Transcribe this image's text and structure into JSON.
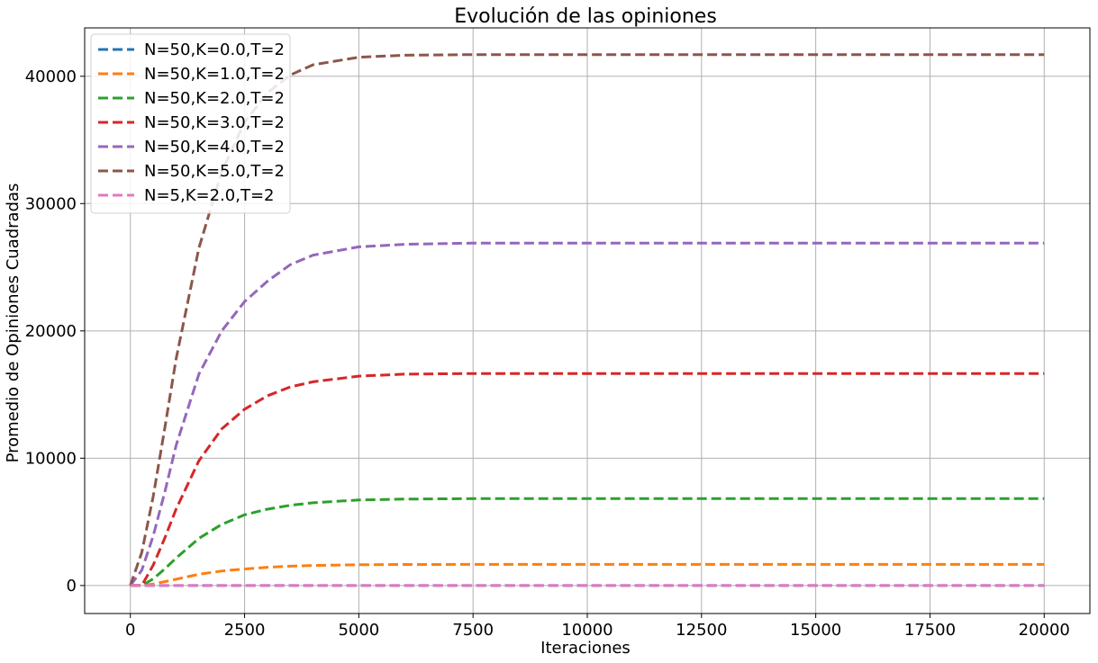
{
  "chart_data": {
    "type": "line",
    "title": "Evolución de las opiniones",
    "xlabel": "Iteraciones",
    "ylabel": "Promedio de Opiniones Cuadradas",
    "xlim": [
      -1000,
      21000
    ],
    "ylim": [
      -2200,
      43800
    ],
    "xticks": [
      0,
      2500,
      5000,
      7500,
      10000,
      12500,
      15000,
      17500,
      20000
    ],
    "xtick_labels": [
      "0",
      "2500",
      "5000",
      "7500",
      "10000",
      "12500",
      "15000",
      "17500",
      "20000"
    ],
    "yticks": [
      0,
      10000,
      20000,
      30000,
      40000
    ],
    "ytick_labels": [
      "0",
      "10000",
      "20000",
      "30000",
      "40000"
    ],
    "grid": true,
    "legend_position": "top-left",
    "line_style": "dashed",
    "x": [
      0,
      250,
      500,
      750,
      1000,
      1500,
      2000,
      2500,
      3000,
      3500,
      4000,
      5000,
      6000,
      7500,
      10000,
      12500,
      15000,
      17500,
      20000
    ],
    "series": [
      {
        "name": "N=50,K=0.0,T=2",
        "color": "#1f77b4",
        "values": [
          0,
          0,
          0,
          0,
          0,
          0,
          0,
          0,
          0,
          0,
          0,
          0,
          0,
          0,
          0,
          0,
          0,
          0,
          0
        ]
      },
      {
        "name": "N=50,K=1.0,T=2",
        "color": "#ff7f0e",
        "values": [
          0,
          0,
          120,
          300,
          490,
          880,
          1140,
          1300,
          1430,
          1520,
          1570,
          1630,
          1650,
          1660,
          1660,
          1660,
          1660,
          1660,
          1660
        ]
      },
      {
        "name": "N=50,K=2.0,T=2",
        "color": "#2ca02c",
        "values": [
          0,
          0,
          520,
          1300,
          2150,
          3700,
          4800,
          5550,
          6000,
          6300,
          6500,
          6720,
          6790,
          6820,
          6820,
          6820,
          6820,
          6820,
          6820
        ]
      },
      {
        "name": "N=50,K=3.0,T=2",
        "color": "#d62728",
        "values": [
          0,
          0,
          1600,
          3700,
          6000,
          9800,
          12300,
          13850,
          14900,
          15600,
          16000,
          16450,
          16600,
          16650,
          16650,
          16650,
          16650,
          16650,
          16650
        ]
      },
      {
        "name": "N=50,K=4.0,T=2",
        "color": "#9467bd",
        "values": [
          0,
          1200,
          3900,
          7300,
          11000,
          16600,
          20000,
          22300,
          23900,
          25200,
          25950,
          26600,
          26800,
          26900,
          26900,
          26900,
          26900,
          26900,
          26900
        ]
      },
      {
        "name": "N=50,K=5.0,T=2",
        "color": "#8c564b",
        "values": [
          0,
          2600,
          7000,
          12300,
          17800,
          26500,
          32500,
          36400,
          38700,
          40100,
          40900,
          41500,
          41650,
          41700,
          41700,
          41700,
          41700,
          41700,
          41700
        ]
      },
      {
        "name": "N=5,K=2.0,T=2",
        "color": "#e377c2",
        "values": [
          0,
          0,
          0,
          0,
          0,
          0,
          0,
          0,
          0,
          0,
          0,
          0,
          0,
          0,
          0,
          0,
          0,
          0,
          0
        ]
      }
    ]
  }
}
